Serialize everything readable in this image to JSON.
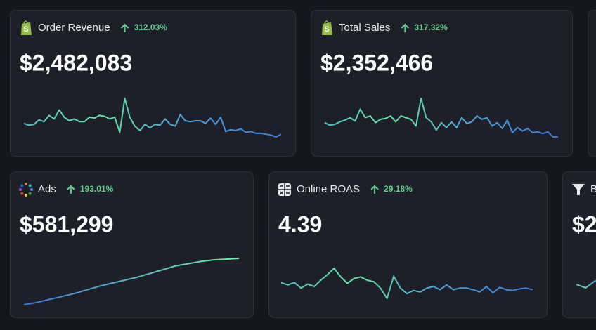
{
  "cards": [
    {
      "title": "Order Revenue",
      "change": "312.03%",
      "value": "$2,482,083",
      "sparkline": [
        18,
        16,
        17,
        22,
        20,
        27,
        23,
        33,
        25,
        21,
        23,
        20,
        20,
        25,
        24,
        27,
        26,
        23,
        25,
        8,
        46,
        25,
        15,
        10,
        17,
        13,
        17,
        16,
        23,
        17,
        15,
        28,
        21,
        20,
        21,
        21,
        18,
        24,
        17,
        25,
        9,
        11,
        10,
        12,
        8,
        9,
        7,
        7,
        6,
        5,
        3,
        6
      ]
    },
    {
      "title": "Total Sales",
      "change": "317.32%",
      "value": "$2,352,466",
      "sparkline": [
        17,
        14,
        15,
        18,
        20,
        23,
        19,
        33,
        23,
        25,
        17,
        21,
        22,
        25,
        18,
        25,
        23,
        21,
        13,
        46,
        23,
        18,
        8,
        17,
        11,
        18,
        11,
        23,
        16,
        18,
        25,
        21,
        23,
        13,
        17,
        10,
        20,
        5,
        11,
        7,
        10,
        5,
        6,
        4,
        6,
        0,
        0
      ]
    },
    {
      "title": "",
      "change": "",
      "value": "",
      "sparkline": []
    },
    {
      "title": "Ads",
      "change": "193.01%",
      "value": "$581,299",
      "sparkline": [
        0,
        3,
        7,
        11,
        15,
        20,
        25,
        29,
        33,
        37,
        42,
        47,
        52,
        55,
        58,
        60,
        61,
        62
      ]
    },
    {
      "title": "Online ROAS",
      "change": "29.18%",
      "value": "4.39",
      "sparkline": [
        20,
        17,
        20,
        13,
        18,
        15,
        23,
        30,
        38,
        27,
        19,
        25,
        27,
        23,
        21,
        13,
        0,
        28,
        13,
        6,
        10,
        8,
        13,
        15,
        11,
        17,
        11,
        13,
        13,
        11,
        8,
        15,
        7,
        14,
        11,
        10,
        12,
        13,
        11
      ]
    },
    {
      "title": "B",
      "change": "",
      "value": "$2",
      "sparkline": [
        2,
        1,
        3,
        2
      ]
    }
  ]
}
